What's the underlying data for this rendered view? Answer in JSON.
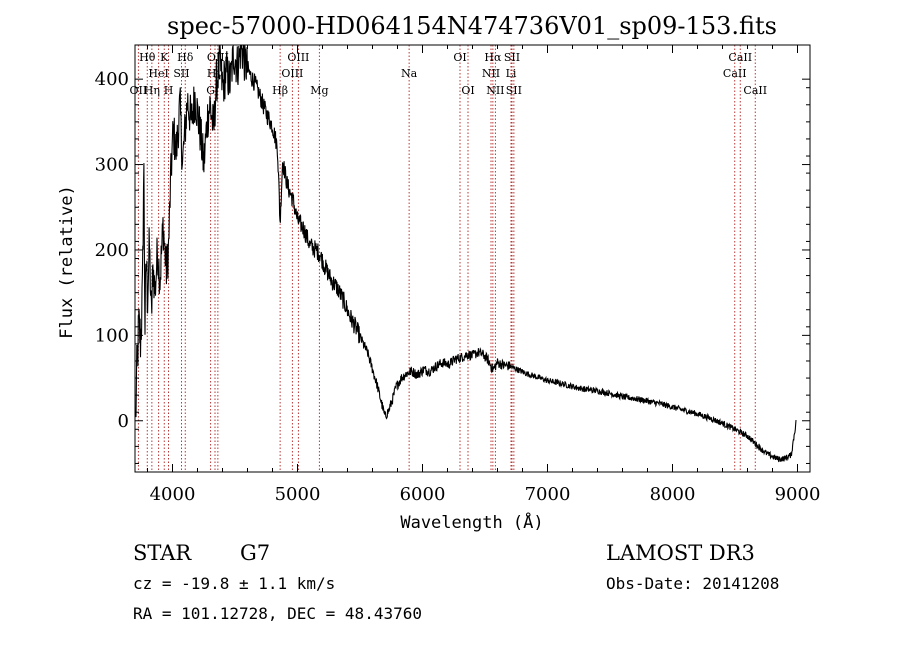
{
  "colors": {
    "background": "#ffffff",
    "ink": "#000000",
    "line_marker": "#b22222"
  },
  "chart_data": {
    "type": "line",
    "title": "spec-57000-HD064154N474736V01_sp09-153.fits",
    "xlabel": "Wavelength (Å)",
    "ylabel": "Flux (relative)",
    "xlim": [
      3700,
      9100
    ],
    "ylim": [
      -60,
      440
    ],
    "x_ticks": [
      4000,
      5000,
      6000,
      7000,
      8000,
      9000
    ],
    "y_ticks": [
      0,
      100,
      200,
      300,
      400
    ],
    "series": [
      {
        "name": "spectrum",
        "points": [
          [
            3705,
            0
          ],
          [
            3715,
            60
          ],
          [
            3730,
            110
          ],
          [
            3745,
            95
          ],
          [
            3760,
            150
          ],
          [
            3770,
            305
          ],
          [
            3780,
            110
          ],
          [
            3790,
            190
          ],
          [
            3800,
            140
          ],
          [
            3815,
            210
          ],
          [
            3830,
            120
          ],
          [
            3845,
            180
          ],
          [
            3860,
            150
          ],
          [
            3880,
            200
          ],
          [
            3900,
            165
          ],
          [
            3925,
            230
          ],
          [
            3950,
            175
          ],
          [
            3968,
            200
          ],
          [
            3985,
            280
          ],
          [
            4005,
            340
          ],
          [
            4030,
            315
          ],
          [
            4060,
            370
          ],
          [
            4080,
            300
          ],
          [
            4100,
            340
          ],
          [
            4120,
            375
          ],
          [
            4150,
            350
          ],
          [
            4180,
            380
          ],
          [
            4220,
            340
          ],
          [
            4250,
            300
          ],
          [
            4280,
            355
          ],
          [
            4300,
            370
          ],
          [
            4330,
            340
          ],
          [
            4350,
            395
          ],
          [
            4380,
            420
          ],
          [
            4400,
            390
          ],
          [
            4430,
            410
          ],
          [
            4460,
            395
          ],
          [
            4490,
            430
          ],
          [
            4520,
            415
          ],
          [
            4550,
            440
          ],
          [
            4580,
            420
          ],
          [
            4620,
            405
          ],
          [
            4660,
            395
          ],
          [
            4700,
            380
          ],
          [
            4750,
            360
          ],
          [
            4800,
            345
          ],
          [
            4840,
            320
          ],
          [
            4861,
            230
          ],
          [
            4880,
            305
          ],
          [
            4920,
            275
          ],
          [
            4960,
            260
          ],
          [
            5000,
            235
          ],
          [
            5050,
            225
          ],
          [
            5100,
            205
          ],
          [
            5150,
            200
          ],
          [
            5180,
            195
          ],
          [
            5220,
            180
          ],
          [
            5270,
            165
          ],
          [
            5320,
            155
          ],
          [
            5370,
            140
          ],
          [
            5420,
            122
          ],
          [
            5470,
            108
          ],
          [
            5520,
            92
          ],
          [
            5560,
            80
          ],
          [
            5600,
            60
          ],
          [
            5640,
            40
          ],
          [
            5670,
            22
          ],
          [
            5700,
            5
          ],
          [
            5730,
            12
          ],
          [
            5760,
            25
          ],
          [
            5790,
            40
          ],
          [
            5830,
            50
          ],
          [
            5870,
            55
          ],
          [
            5910,
            58
          ],
          [
            5960,
            54
          ],
          [
            6010,
            60
          ],
          [
            6060,
            58
          ],
          [
            6110,
            64
          ],
          [
            6160,
            68
          ],
          [
            6210,
            66
          ],
          [
            6260,
            72
          ],
          [
            6310,
            74
          ],
          [
            6360,
            78
          ],
          [
            6400,
            76
          ],
          [
            6440,
            80
          ],
          [
            6480,
            78
          ],
          [
            6520,
            72
          ],
          [
            6563,
            60
          ],
          [
            6600,
            68
          ],
          [
            6650,
            65
          ],
          [
            6700,
            64
          ],
          [
            6760,
            60
          ],
          [
            6820,
            56
          ],
          [
            6900,
            52
          ],
          [
            7000,
            47
          ],
          [
            7100,
            44
          ],
          [
            7200,
            40
          ],
          [
            7300,
            37
          ],
          [
            7400,
            35
          ],
          [
            7500,
            32
          ],
          [
            7600,
            28
          ],
          [
            7700,
            26
          ],
          [
            7800,
            23
          ],
          [
            7900,
            20
          ],
          [
            8000,
            16
          ],
          [
            8100,
            12
          ],
          [
            8200,
            8
          ],
          [
            8300,
            3
          ],
          [
            8400,
            -3
          ],
          [
            8500,
            -10
          ],
          [
            8600,
            -18
          ],
          [
            8650,
            -25
          ],
          [
            8700,
            -32
          ],
          [
            8750,
            -38
          ],
          [
            8800,
            -42
          ],
          [
            8850,
            -45
          ],
          [
            8900,
            -44
          ],
          [
            8950,
            -40
          ],
          [
            8990,
            0
          ]
        ]
      }
    ],
    "spectral_lines": [
      {
        "label": "Hθ",
        "wavelength": 3798,
        "row": 0
      },
      {
        "label": "OII",
        "wavelength": 3727,
        "row": 2
      },
      {
        "label": "Hη",
        "wavelength": 3835,
        "row": 2
      },
      {
        "label": "HeI",
        "wavelength": 3889,
        "row": 1
      },
      {
        "label": "K",
        "wavelength": 3934,
        "row": 0
      },
      {
        "label": "H",
        "wavelength": 3968,
        "row": 2
      },
      {
        "label": "SII",
        "wavelength": 4072,
        "row": 1
      },
      {
        "label": "Hδ",
        "wavelength": 4102,
        "row": 0
      },
      {
        "label": "G",
        "wavelength": 4305,
        "row": 2
      },
      {
        "label": "Hγ",
        "wavelength": 4340,
        "row": 1
      },
      {
        "label": "OIII",
        "wavelength": 4363,
        "row": 0
      },
      {
        "label": "Hβ",
        "wavelength": 4861,
        "row": 2
      },
      {
        "label": "OIII",
        "wavelength": 4959,
        "row": 1
      },
      {
        "label": "OIII",
        "wavelength": 5007,
        "row": 0
      },
      {
        "label": "Mg",
        "wavelength": 5175,
        "row": 2
      },
      {
        "label": "Na",
        "wavelength": 5893,
        "row": 1
      },
      {
        "label": "OI",
        "wavelength": 6300,
        "row": 0
      },
      {
        "label": "OI",
        "wavelength": 6364,
        "row": 2
      },
      {
        "label": "NII",
        "wavelength": 6548,
        "row": 1
      },
      {
        "label": "Hα",
        "wavelength": 6563,
        "row": 0
      },
      {
        "label": "NII",
        "wavelength": 6583,
        "row": 2
      },
      {
        "label": "Li",
        "wavelength": 6708,
        "row": 1
      },
      {
        "label": "SII",
        "wavelength": 6716,
        "row": 0
      },
      {
        "label": "SII",
        "wavelength": 6731,
        "row": 2
      },
      {
        "label": "CaII",
        "wavelength": 8498,
        "row": 1
      },
      {
        "label": "CaII",
        "wavelength": 8542,
        "row": 0
      },
      {
        "label": "CaII",
        "wavelength": 8662,
        "row": 2
      }
    ]
  },
  "info": {
    "object_class": "STAR",
    "subclass": "G7",
    "redshift_text": "cz = -19.8 ± 1.1 km/s",
    "coords_text": "RA = 101.12728, DEC =  48.43760",
    "survey": "LAMOST DR3",
    "obs_date_text": "Obs-Date: 20141208"
  }
}
